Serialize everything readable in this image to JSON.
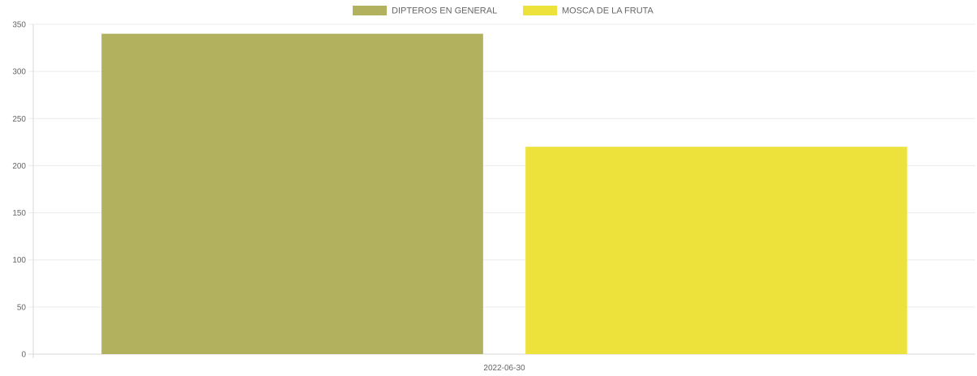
{
  "chart_data": {
    "type": "bar",
    "categories": [
      "2022-06-30"
    ],
    "series": [
      {
        "name": "DIPTEROS EN GENERAL",
        "values": [
          340
        ],
        "color": "#b2b25e"
      },
      {
        "name": "MOSCA DE LA FRUTA",
        "values": [
          220
        ],
        "color": "#ede23b"
      }
    ],
    "ylim": [
      0,
      350
    ],
    "yticks": [
      0,
      50,
      100,
      150,
      200,
      250,
      300,
      350
    ],
    "grid": true,
    "legend_position": "top-center",
    "title": "",
    "xlabel": "",
    "ylabel": ""
  }
}
